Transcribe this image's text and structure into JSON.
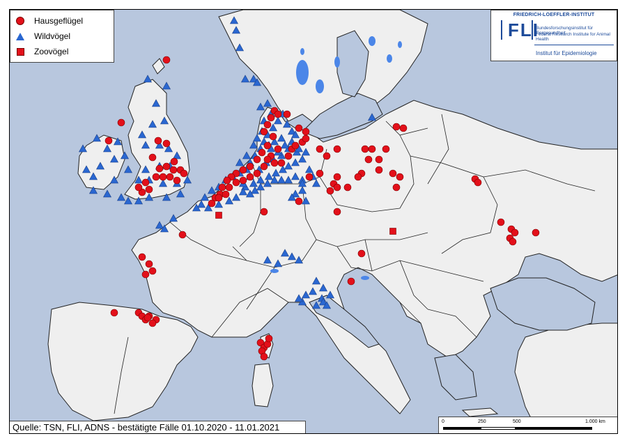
{
  "legend": {
    "items": [
      {
        "label": "Hausgeflügel",
        "symbol": "circle-icon"
      },
      {
        "label": "Wildvögel",
        "symbol": "triangle-icon"
      },
      {
        "label": "Zoovögel",
        "symbol": "square-icon"
      }
    ]
  },
  "colors": {
    "sea": "#b8c7de",
    "land": "#efefef",
    "outside_land": "#dcdcdc",
    "hausgefluegel": "#e3101a",
    "wildvoegel": "#2a67d1",
    "zoovoegel": "#e3101a",
    "lakes": "#4b86e8"
  },
  "logo": {
    "top": "FRIEDRICH-LOEFFLER-INSTITUT",
    "mark": "FLI",
    "sub1": "Bundesforschungsinstitut für Tiergesundheit",
    "sub2": "Federal Research Institute for Animal Health",
    "institute": "Institut für Epidemiologie"
  },
  "source": "Quelle: TSN, FLI, ADNS - bestätigte Fälle 01.10.2020 - 11.01.2021",
  "scale": {
    "labels": [
      "0",
      "250",
      "500",
      "1.000 km"
    ]
  }
}
